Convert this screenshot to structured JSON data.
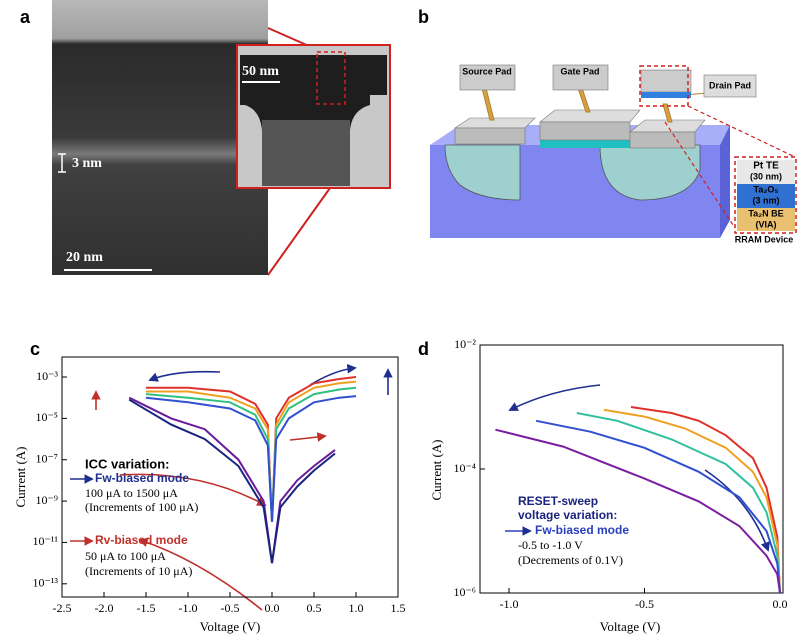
{
  "panel_labels": [
    "a",
    "b",
    "c",
    "d"
  ],
  "tem_image": {
    "scale_labels": [
      "50 nm",
      "3 nm",
      "20 nm"
    ]
  },
  "device_diagram": {
    "pads": [
      "Source Pad",
      "Gate Pad",
      "Drain Pad"
    ],
    "stack": [
      "Pt TE",
      "(30 nm)",
      "Ta₂O₅",
      "(3 nm)",
      "Ta₂N BE",
      "(VIA)"
    ],
    "caption": "RRAM Device"
  },
  "chart_data": [
    {
      "type": "line",
      "xlabel": "Voltage (V)",
      "ylabel": "Current (A)",
      "yscale": "log",
      "xlim": [
        -2.5,
        1.5
      ],
      "ylim": [
        2.3e-14,
        0.0093
      ],
      "xticks": [
        {
          "value": -2.5,
          "label": "-2.5"
        },
        {
          "value": -2,
          "label": "-2.0"
        },
        {
          "value": -1.5,
          "label": "-1.5"
        },
        {
          "value": -1,
          "label": "-1.0"
        },
        {
          "value": -0.5,
          "label": "-0.5"
        },
        {
          "value": 0,
          "label": "0.0"
        },
        {
          "value": 0.5,
          "label": "0.5"
        },
        {
          "value": 1,
          "label": "1.0"
        },
        {
          "value": 1.5,
          "label": "1.5"
        }
      ],
      "yticks": [
        {
          "value": 0.001,
          "label": "10⁻³"
        },
        {
          "value": 1e-05,
          "label": "10⁻⁵"
        },
        {
          "value": 1e-07,
          "label": "10⁻⁷"
        },
        {
          "value": 1e-09,
          "label": "10⁻⁹"
        },
        {
          "value": 1e-11,
          "label": "10⁻¹¹"
        },
        {
          "value": 1e-13,
          "label": "10⁻¹³"
        }
      ],
      "series": [
        {
          "color": "#e0302a",
          "x": [
            -1.5,
            -1.0,
            -0.5,
            -0.2,
            -0.05,
            0,
            0.05,
            0.2,
            0.5,
            0.8,
            1.0
          ],
          "values": [
            0.0003,
            0.0003,
            0.0002,
            5e-05,
            5e-06,
            1e-10,
            1e-05,
            0.0001,
            0.0005,
            0.0008,
            0.001
          ]
        },
        {
          "color": "#f0a020",
          "x": [
            -1.5,
            -1.0,
            -0.5,
            -0.2,
            -0.05,
            0,
            0.05,
            0.2,
            0.5,
            0.8,
            1.0
          ],
          "values": [
            0.0002,
            0.0002,
            0.0001,
            3e-05,
            3e-06,
            1e-10,
            5e-06,
            6e-05,
            0.0003,
            0.0005,
            0.0006
          ]
        },
        {
          "color": "#30c080",
          "x": [
            -1.5,
            -1.0,
            -0.5,
            -0.2,
            -0.05,
            0,
            0.05,
            0.2,
            0.5,
            0.8,
            1.0
          ],
          "values": [
            0.00015,
            0.0001,
            6e-05,
            1.5e-05,
            1e-06,
            1e-10,
            3e-06,
            3e-05,
            0.00015,
            0.00025,
            0.0003
          ]
        },
        {
          "color": "#3050d0",
          "x": [
            -1.5,
            -1.0,
            -0.5,
            -0.2,
            -0.05,
            0,
            0.05,
            0.2,
            0.5,
            0.8,
            1.0
          ],
          "values": [
            0.0001,
            6e-05,
            3e-05,
            8e-06,
            5e-07,
            1e-10,
            1e-06,
            1e-05,
            6e-05,
            0.0001,
            0.00012
          ]
        },
        {
          "color": "#6a1b9a",
          "x": [
            -1.7,
            -1.2,
            -0.8,
            -0.4,
            -0.1,
            0,
            0.1,
            0.3,
            0.5,
            0.75
          ],
          "values": [
            0.0001,
            1e-05,
            3e-06,
            1e-07,
            1e-09,
            1e-12,
            1e-09,
            1e-08,
            5e-08,
            3e-07
          ]
        },
        {
          "color": "#1a237e",
          "x": [
            -1.7,
            -1.2,
            -0.8,
            -0.4,
            -0.1,
            0,
            0.1,
            0.3,
            0.5,
            0.75
          ],
          "values": [
            8e-05,
            5e-06,
            1e-06,
            5e-08,
            5e-10,
            1e-12,
            5e-10,
            5e-09,
            3e-08,
            2e-07
          ]
        }
      ],
      "annotations": [
        {
          "text": "ICC variation:",
          "color": "#000000"
        },
        {
          "text": "Fw-biased mode",
          "color": "#1f2f8f"
        },
        {
          "text": "100 μA to 1500 μA",
          "color": "#000000"
        },
        {
          "text": "(Increments of 100 μA)",
          "color": "#000000"
        },
        {
          "text": "Rv-biased mode",
          "color": "#c0302a"
        },
        {
          "text": "50 μA to 100 μA",
          "color": "#000000"
        },
        {
          "text": "(Increments of 10 μA)",
          "color": "#000000"
        }
      ]
    },
    {
      "type": "line",
      "xlabel": "Voltage (V)",
      "ylabel": "Current (A)",
      "yscale": "log",
      "xlim": [
        -1.107,
        0.011
      ],
      "ylim": [
        1e-06,
        0.01
      ],
      "xticks": [
        {
          "value": -1,
          "label": "-1.0"
        },
        {
          "value": -0.5,
          "label": "-0.5"
        },
        {
          "value": 0,
          "label": "0.0"
        }
      ],
      "yticks": [
        {
          "value": 0.01,
          "label": "10⁻²"
        },
        {
          "value": 0.0001,
          "label": "10⁻⁴"
        },
        {
          "value": 1e-06,
          "label": "10⁻⁶"
        }
      ],
      "series": [
        {
          "color": "#e0302a",
          "x": [
            -0.55,
            -0.4,
            -0.3,
            -0.2,
            -0.1,
            -0.05,
            -0.01,
            0
          ],
          "values": [
            0.001,
            0.0008,
            0.0006,
            0.00035,
            0.00015,
            5e-05,
            8e-06,
            1e-06
          ]
        },
        {
          "color": "#f0a020",
          "x": [
            -0.65,
            -0.5,
            -0.35,
            -0.2,
            -0.1,
            -0.05,
            -0.01,
            0
          ],
          "values": [
            0.0009,
            0.0007,
            0.00045,
            0.00022,
            9e-05,
            3.5e-05,
            6e-06,
            1e-06
          ]
        },
        {
          "color": "#30c0a0",
          "x": [
            -0.75,
            -0.6,
            -0.4,
            -0.2,
            -0.1,
            -0.05,
            -0.01,
            0
          ],
          "values": [
            0.0008,
            0.0006,
            0.0003,
            0.00012,
            5e-05,
            2e-05,
            4e-06,
            1e-06
          ]
        },
        {
          "color": "#3050d0",
          "x": [
            -0.9,
            -0.7,
            -0.5,
            -0.3,
            -0.15,
            -0.05,
            -0.01,
            0
          ],
          "values": [
            0.0006,
            0.0004,
            0.00022,
            9e-05,
            3.5e-05,
            1e-05,
            3e-06,
            1e-06
          ]
        },
        {
          "color": "#7b1fa2",
          "x": [
            -1.05,
            -0.8,
            -0.5,
            -0.3,
            -0.15,
            -0.05,
            -0.01,
            0
          ],
          "values": [
            0.00043,
            0.00023,
            7e-05,
            3e-05,
            1.2e-05,
            4e-06,
            2e-06,
            1e-06
          ]
        }
      ],
      "annotations": [
        {
          "text": "RESET-sweep",
          "color": "#1a237e"
        },
        {
          "text": "voltage variation:",
          "color": "#1a237e"
        },
        {
          "text": "Fw-biased mode",
          "color": "#2a3fbf"
        },
        {
          "text": "-0.5 to -1.0 V",
          "color": "#000000"
        },
        {
          "text": "(Decrements of 0.1V)",
          "color": "#000000"
        }
      ]
    }
  ]
}
